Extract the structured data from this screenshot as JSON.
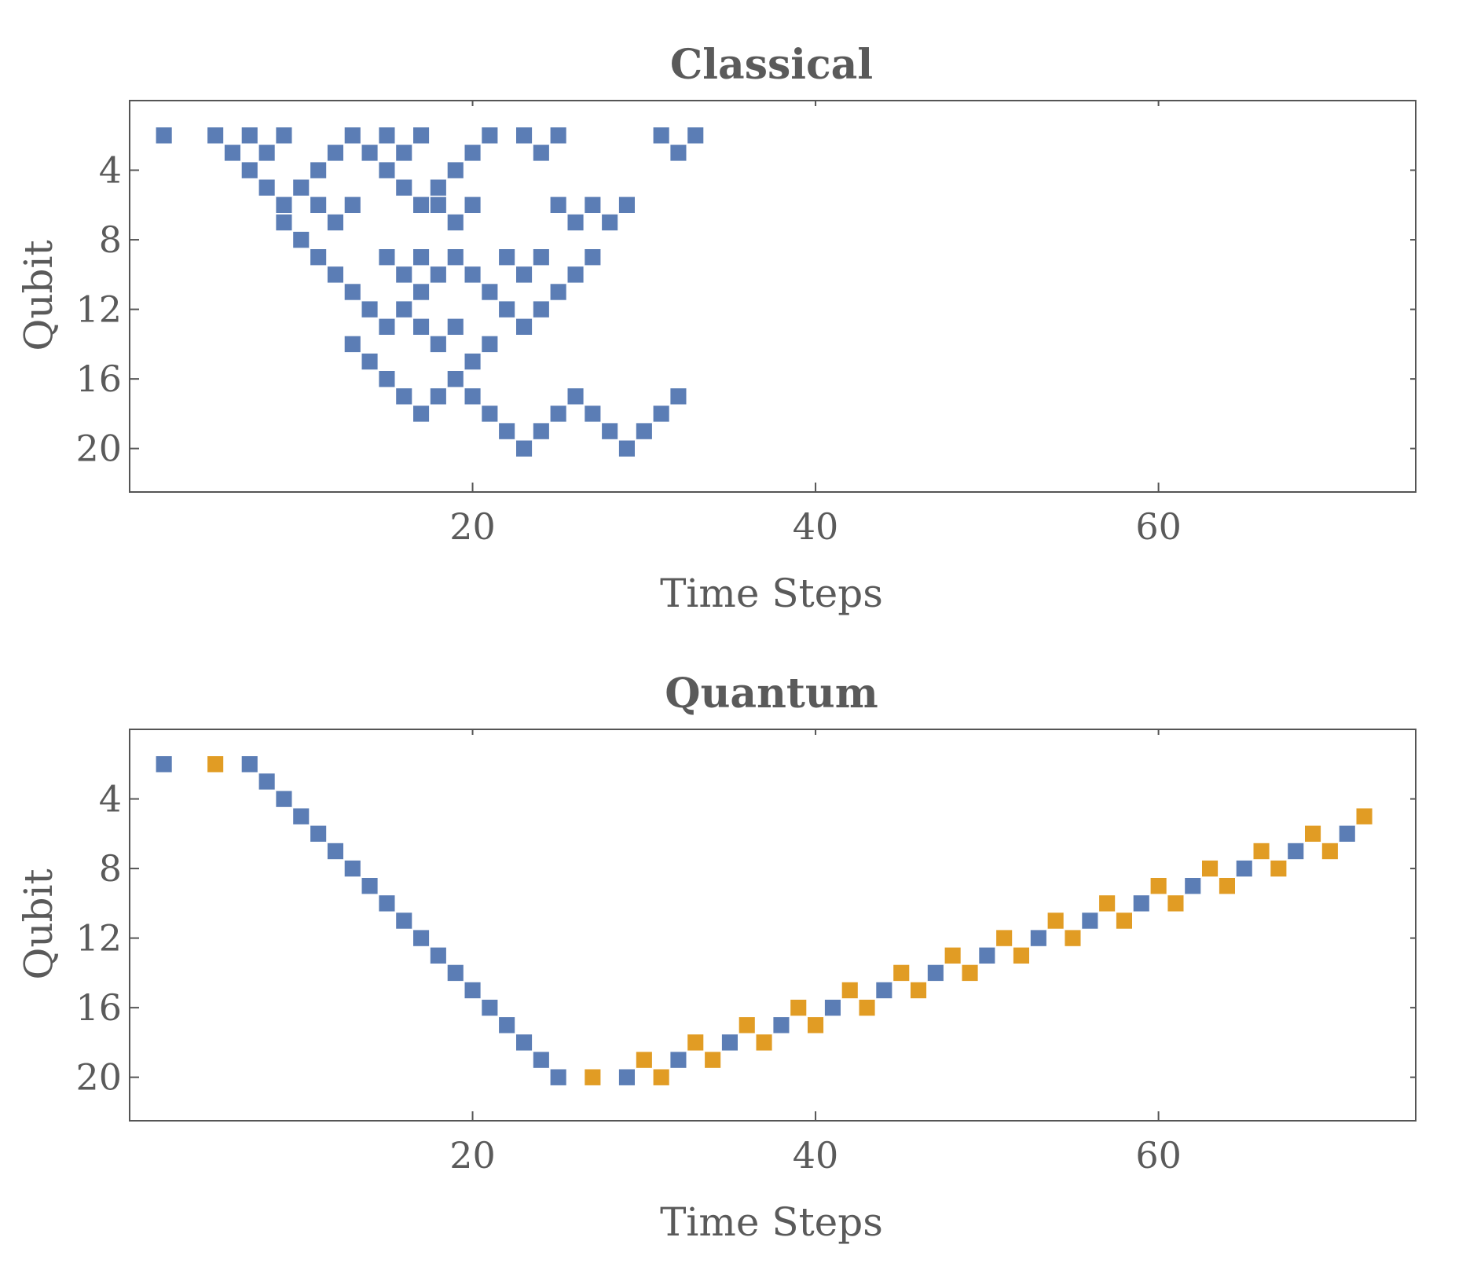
{
  "chart_data": [
    {
      "type": "heatmap",
      "title": "Classical",
      "xlabel": "Time Steps",
      "ylabel": "Qubit",
      "xlim": [
        0,
        75
      ],
      "ylim": [
        22.5,
        0
      ],
      "xticks": [
        20,
        40,
        60
      ],
      "yticks": [
        4,
        8,
        12,
        16,
        20
      ],
      "colors": {
        "cell": "#5b7db5"
      },
      "series": [
        {
          "color": "#5b7db5",
          "points": [
            [
              2,
              2
            ],
            [
              5,
              2
            ],
            [
              6,
              3
            ],
            [
              7,
              4
            ],
            [
              8,
              5
            ],
            [
              9,
              6
            ],
            [
              10,
              5
            ],
            [
              11,
              4
            ],
            [
              12,
              3
            ],
            [
              13,
              2
            ],
            [
              14,
              3
            ],
            [
              15,
              4
            ],
            [
              16,
              5
            ],
            [
              17,
              6
            ],
            [
              18,
              5
            ],
            [
              19,
              4
            ],
            [
              20,
              3
            ],
            [
              21,
              2
            ],
            [
              7,
              2
            ],
            [
              8,
              3
            ],
            [
              9,
              2
            ],
            [
              15,
              2
            ],
            [
              16,
              3
            ],
            [
              17,
              2
            ],
            [
              23,
              2
            ],
            [
              24,
              3
            ],
            [
              25,
              2
            ],
            [
              31,
              2
            ],
            [
              32,
              3
            ],
            [
              33,
              2
            ],
            [
              9,
              7
            ],
            [
              10,
              8
            ],
            [
              11,
              9
            ],
            [
              12,
              10
            ],
            [
              13,
              11
            ],
            [
              14,
              12
            ],
            [
              15,
              13
            ],
            [
              16,
              12
            ],
            [
              17,
              11
            ],
            [
              18,
              10
            ],
            [
              19,
              9
            ],
            [
              20,
              10
            ],
            [
              21,
              11
            ],
            [
              22,
              12
            ],
            [
              23,
              13
            ],
            [
              24,
              12
            ],
            [
              25,
              11
            ],
            [
              26,
              10
            ],
            [
              27,
              9
            ],
            [
              11,
              6
            ],
            [
              12,
              7
            ],
            [
              13,
              6
            ],
            [
              15,
              9
            ],
            [
              16,
              10
            ],
            [
              17,
              9
            ],
            [
              18,
              6
            ],
            [
              19,
              7
            ],
            [
              20,
              6
            ],
            [
              22,
              9
            ],
            [
              23,
              10
            ],
            [
              24,
              9
            ],
            [
              25,
              6
            ],
            [
              26,
              7
            ],
            [
              27,
              6
            ],
            [
              28,
              7
            ],
            [
              29,
              6
            ],
            [
              13,
              14
            ],
            [
              14,
              15
            ],
            [
              15,
              16
            ],
            [
              16,
              17
            ],
            [
              17,
              18
            ],
            [
              18,
              17
            ],
            [
              19,
              16
            ],
            [
              20,
              15
            ],
            [
              21,
              14
            ],
            [
              17,
              13
            ],
            [
              18,
              14
            ],
            [
              19,
              13
            ],
            [
              20,
              17
            ],
            [
              21,
              18
            ],
            [
              22,
              19
            ],
            [
              23,
              20
            ],
            [
              24,
              19
            ],
            [
              25,
              18
            ],
            [
              26,
              17
            ],
            [
              27,
              18
            ],
            [
              28,
              19
            ],
            [
              29,
              20
            ],
            [
              30,
              19
            ],
            [
              31,
              18
            ],
            [
              32,
              17
            ]
          ]
        }
      ]
    },
    {
      "type": "heatmap",
      "title": "Quantum",
      "xlabel": "Time Steps",
      "ylabel": "Qubit",
      "xlim": [
        0,
        75
      ],
      "ylim": [
        22.5,
        0
      ],
      "xticks": [
        20,
        40,
        60
      ],
      "yticks": [
        4,
        8,
        12,
        16,
        20
      ],
      "colors": {
        "blue": "#5b7db5",
        "orange": "#e19c24"
      },
      "series": [
        {
          "color": "#5b7db5",
          "points": [
            [
              2,
              2
            ],
            [
              7,
              2
            ],
            [
              8,
              3
            ],
            [
              9,
              4
            ],
            [
              10,
              5
            ],
            [
              11,
              6
            ],
            [
              12,
              7
            ],
            [
              13,
              8
            ],
            [
              14,
              9
            ],
            [
              15,
              10
            ],
            [
              16,
              11
            ],
            [
              17,
              12
            ],
            [
              18,
              13
            ],
            [
              19,
              14
            ],
            [
              20,
              15
            ],
            [
              21,
              16
            ],
            [
              22,
              17
            ],
            [
              23,
              18
            ],
            [
              24,
              19
            ],
            [
              25,
              20
            ],
            [
              29,
              20
            ],
            [
              32,
              19
            ],
            [
              35,
              18
            ],
            [
              38,
              17
            ],
            [
              41,
              16
            ],
            [
              44,
              15
            ],
            [
              47,
              14
            ],
            [
              50,
              13
            ],
            [
              53,
              12
            ],
            [
              56,
              11
            ],
            [
              59,
              10
            ],
            [
              62,
              9
            ],
            [
              65,
              8
            ],
            [
              68,
              7
            ],
            [
              71,
              6
            ]
          ]
        },
        {
          "color": "#e19c24",
          "points": [
            [
              5,
              2
            ],
            [
              27,
              20
            ],
            [
              30,
              19
            ],
            [
              31,
              20
            ],
            [
              33,
              18
            ],
            [
              34,
              19
            ],
            [
              36,
              17
            ],
            [
              37,
              18
            ],
            [
              39,
              16
            ],
            [
              40,
              17
            ],
            [
              42,
              15
            ],
            [
              43,
              16
            ],
            [
              45,
              14
            ],
            [
              46,
              15
            ],
            [
              48,
              13
            ],
            [
              49,
              14
            ],
            [
              51,
              12
            ],
            [
              52,
              13
            ],
            [
              54,
              11
            ],
            [
              55,
              12
            ],
            [
              57,
              10
            ],
            [
              58,
              11
            ],
            [
              60,
              9
            ],
            [
              61,
              10
            ],
            [
              63,
              8
            ],
            [
              64,
              9
            ],
            [
              66,
              7
            ],
            [
              67,
              8
            ],
            [
              69,
              6
            ],
            [
              70,
              7
            ],
            [
              72,
              5
            ]
          ]
        }
      ]
    }
  ]
}
